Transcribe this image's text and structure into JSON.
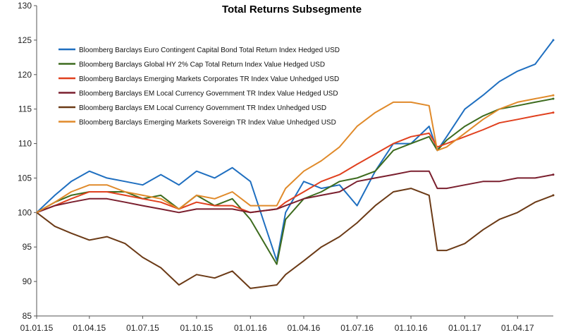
{
  "chart_data": {
    "type": "line",
    "title": "Total Returns Subsegmente",
    "xlabel": "",
    "ylabel": "",
    "ylim": [
      85,
      130
    ],
    "yticks": [
      85,
      90,
      95,
      100,
      105,
      110,
      115,
      120,
      125,
      130
    ],
    "x_range": [
      "01.01.15",
      "01.06.17"
    ],
    "xticks": [
      "01.01.15",
      "01.04.15",
      "01.07.15",
      "01.10.15",
      "01.01.16",
      "01.04.16",
      "01.07.16",
      "01.10.16",
      "01.01.17",
      "01.04.17"
    ],
    "legend_position": "top-left",
    "grid": false,
    "x_dates": [
      "01.01.15",
      "01.02.15",
      "01.03.15",
      "01.04.15",
      "01.05.15",
      "01.06.15",
      "01.07.15",
      "01.08.15",
      "01.09.15",
      "01.10.15",
      "01.11.15",
      "01.12.15",
      "01.01.16",
      "15.02.16",
      "01.03.16",
      "01.04.16",
      "01.05.16",
      "01.06.16",
      "01.07.16",
      "01.08.16",
      "01.09.16",
      "01.10.16",
      "01.11.16",
      "15.11.16",
      "01.12.16",
      "01.01.17",
      "01.02.17",
      "01.03.17",
      "01.04.17",
      "01.05.17",
      "01.06.17"
    ],
    "series": [
      {
        "name": "Bloomberg Barclays Euro Contingent Capital Bond Total Return Index Hedged USD",
        "color": "#1f6fc0",
        "values": [
          100.0,
          102.5,
          104.5,
          106.0,
          105.0,
          104.5,
          104.0,
          105.5,
          104.0,
          106.0,
          105.0,
          106.5,
          104.5,
          93.0,
          100.0,
          104.5,
          103.5,
          104.0,
          101.0,
          106.0,
          110.0,
          110.0,
          112.5,
          109.0,
          111.0,
          115.0,
          117.0,
          119.0,
          120.5,
          121.5,
          125.0
        ]
      },
      {
        "name": "Bloomberg Barclays Global HY 2% Cap Total Return Index Value Hedged USD",
        "color": "#3d6b1e",
        "values": [
          100.0,
          101.5,
          102.5,
          103.0,
          103.0,
          103.0,
          102.0,
          102.5,
          100.5,
          102.5,
          101.0,
          102.0,
          99.0,
          92.5,
          99.0,
          102.0,
          103.0,
          104.5,
          105.0,
          106.0,
          109.0,
          110.0,
          111.0,
          109.0,
          110.5,
          112.5,
          114.0,
          115.0,
          115.5,
          116.0,
          116.5
        ]
      },
      {
        "name": "Bloomberg Barclays Emerging Markets Corporates TR Index Value Unhedged USD",
        "color": "#e0401e",
        "values": [
          100.0,
          101.0,
          102.0,
          103.0,
          103.0,
          102.5,
          102.0,
          101.5,
          100.5,
          101.5,
          101.0,
          101.0,
          100.0,
          100.5,
          101.5,
          103.0,
          104.5,
          105.5,
          107.0,
          108.5,
          110.0,
          111.0,
          111.5,
          109.5,
          110.0,
          111.0,
          112.0,
          113.0,
          113.5,
          114.0,
          114.5
        ]
      },
      {
        "name": "Bloomberg Barclays EM Local Currency Government TR Index Value Hedged USD",
        "color": "#7a1f2e",
        "values": [
          100.0,
          101.0,
          101.5,
          102.0,
          102.0,
          101.5,
          101.0,
          100.5,
          100.0,
          100.5,
          100.5,
          100.5,
          100.0,
          100.5,
          101.0,
          102.0,
          102.5,
          103.0,
          104.5,
          105.0,
          105.5,
          106.0,
          106.0,
          103.5,
          103.5,
          104.0,
          104.5,
          104.5,
          105.0,
          105.0,
          105.5
        ]
      },
      {
        "name": "Bloomberg Barclays EM Local Currency Government TR Index Unhedged USD",
        "color": "#6b3a16",
        "values": [
          100.0,
          98.0,
          97.0,
          96.0,
          96.5,
          95.5,
          93.5,
          92.0,
          89.5,
          91.0,
          90.5,
          91.5,
          89.0,
          89.5,
          91.0,
          93.0,
          95.0,
          96.5,
          98.5,
          101.0,
          103.0,
          103.5,
          102.5,
          94.5,
          94.5,
          95.5,
          97.5,
          99.0,
          100.0,
          101.5,
          102.5
        ]
      },
      {
        "name": "Bloomberg Barclays Emerging Markets Sovereign TR Index Value Unhedged USD",
        "color": "#e08a2a",
        "values": [
          100.0,
          101.5,
          103.0,
          104.0,
          104.0,
          103.0,
          102.5,
          102.0,
          100.5,
          102.5,
          102.0,
          103.0,
          101.0,
          101.0,
          103.5,
          106.0,
          107.5,
          109.5,
          112.5,
          114.5,
          116.0,
          116.0,
          115.5,
          109.0,
          109.5,
          111.5,
          113.5,
          115.0,
          116.0,
          116.5,
          117.0
        ]
      }
    ]
  }
}
